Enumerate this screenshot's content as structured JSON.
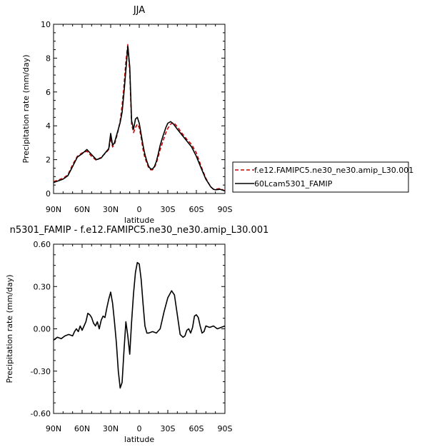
{
  "chart_data": [
    {
      "type": "line",
      "title": "JJA",
      "xlabel": "latitude",
      "ylabel": "Precipitation rate (mm/day)",
      "xlim": [
        90,
        -90
      ],
      "ylim": [
        0,
        10
      ],
      "xticks": [
        90,
        60,
        30,
        0,
        -30,
        -60,
        -90
      ],
      "xtick_labels": [
        "90N",
        "60N",
        "30N",
        "0",
        "30S",
        "60S",
        "90S"
      ],
      "yticks": [
        0,
        2,
        4,
        6,
        8,
        10
      ],
      "ytick_labels": [
        "0",
        "2",
        "4",
        "6",
        "8",
        "10"
      ],
      "legend_position": "right",
      "series": [
        {
          "name": "f.e12.FAMIPC5.ne30_ne30.amip_L30.001",
          "color": "#cc0000",
          "style": "dashed",
          "x": [
            90,
            85,
            80,
            75,
            70,
            65,
            60,
            55,
            50,
            45,
            40,
            35,
            32,
            30,
            28,
            26,
            24,
            22,
            20,
            18,
            16,
            14,
            12,
            10,
            8,
            6,
            4,
            2,
            0,
            -2,
            -4,
            -6,
            -8,
            -10,
            -12,
            -14,
            -16,
            -18,
            -20,
            -22,
            -25,
            -28,
            -30,
            -33,
            -36,
            -40,
            -45,
            -50,
            -55,
            -60,
            -65,
            -70,
            -75,
            -78,
            -80,
            -85,
            -90
          ],
          "values": [
            0.7,
            0.8,
            0.9,
            1.1,
            1.7,
            2.2,
            2.4,
            2.5,
            2.2,
            1.95,
            2.15,
            2.4,
            2.6,
            3.3,
            2.75,
            2.9,
            3.3,
            3.75,
            4.3,
            5.2,
            6.4,
            7.8,
            8.8,
            7.2,
            4.1,
            3.6,
            3.9,
            4.1,
            3.9,
            3.3,
            2.6,
            2.1,
            1.8,
            1.5,
            1.4,
            1.4,
            1.55,
            1.8,
            2.2,
            2.6,
            3.1,
            3.6,
            3.85,
            4.1,
            4.2,
            3.95,
            3.55,
            3.2,
            2.9,
            2.4,
            1.6,
            0.9,
            0.4,
            0.25,
            0.25,
            0.3,
            0.15
          ]
        },
        {
          "name": "60Lcam5301_FAMIP",
          "color": "#000000",
          "style": "solid",
          "x": [
            90,
            85,
            80,
            75,
            70,
            65,
            60,
            55,
            50,
            45,
            40,
            35,
            32,
            30,
            28,
            26,
            24,
            22,
            20,
            18,
            16,
            14,
            12,
            10,
            8,
            6,
            4,
            2,
            0,
            -2,
            -4,
            -6,
            -8,
            -10,
            -12,
            -14,
            -16,
            -18,
            -20,
            -22,
            -25,
            -28,
            -30,
            -33,
            -36,
            -40,
            -45,
            -50,
            -55,
            -60,
            -65,
            -70,
            -75,
            -78,
            -80,
            -85,
            -90
          ],
          "values": [
            0.65,
            0.75,
            0.85,
            1.05,
            1.6,
            2.15,
            2.35,
            2.6,
            2.3,
            2.0,
            2.1,
            2.45,
            2.65,
            3.55,
            2.85,
            3.0,
            3.4,
            3.8,
            4.2,
            4.8,
            6.0,
            7.3,
            8.7,
            7.5,
            4.3,
            3.8,
            4.4,
            4.5,
            4.15,
            3.5,
            2.85,
            2.3,
            1.9,
            1.6,
            1.45,
            1.45,
            1.6,
            1.9,
            2.35,
            2.85,
            3.4,
            3.9,
            4.15,
            4.25,
            4.1,
            3.8,
            3.45,
            3.1,
            2.75,
            2.2,
            1.5,
            0.85,
            0.4,
            0.25,
            0.22,
            0.25,
            0.15
          ]
        }
      ]
    },
    {
      "type": "line",
      "title": "n5301_FAMIP - f.e12.FAMIPC5.ne30_ne30.amip_L30.001",
      "xlabel": "latitude",
      "ylabel": "Precipitation rate (mm/day)",
      "xlim": [
        90,
        -90
      ],
      "ylim": [
        -0.6,
        0.6
      ],
      "xticks": [
        90,
        60,
        30,
        0,
        -30,
        -60,
        -90
      ],
      "xtick_labels": [
        "90N",
        "60N",
        "30N",
        "0",
        "30S",
        "60S",
        "90S"
      ],
      "yticks": [
        0.6,
        0.3,
        0.0,
        -0.3,
        -0.6
      ],
      "ytick_labels": [
        "0.60",
        "0.30",
        "0.00",
        "-0.30",
        "-0.60"
      ],
      "series": [
        {
          "color": "#000000",
          "style": "solid",
          "x": [
            90,
            86,
            82,
            78,
            74,
            70,
            68,
            66,
            64,
            62,
            60,
            58,
            56,
            54,
            52,
            50,
            48,
            46,
            44,
            42,
            40,
            38,
            36,
            34,
            32,
            30,
            28,
            26,
            24,
            22,
            20,
            18,
            16,
            14,
            12,
            10,
            8,
            6,
            4,
            2,
            0,
            -2,
            -4,
            -6,
            -8,
            -10,
            -14,
            -18,
            -22,
            -26,
            -30,
            -34,
            -37,
            -40,
            -43,
            -46,
            -48,
            -50,
            -52,
            -54,
            -56,
            -58,
            -60,
            -62,
            -64,
            -66,
            -68,
            -70,
            -74,
            -78,
            -82,
            -86,
            -90
          ],
          "values": [
            -0.08,
            -0.06,
            -0.07,
            -0.05,
            -0.04,
            -0.05,
            -0.02,
            0.0,
            -0.02,
            0.02,
            -0.01,
            0.02,
            0.05,
            0.11,
            0.1,
            0.08,
            0.04,
            0.02,
            0.05,
            0.0,
            0.06,
            0.09,
            0.08,
            0.15,
            0.21,
            0.26,
            0.18,
            0.05,
            -0.1,
            -0.3,
            -0.42,
            -0.38,
            -0.15,
            0.05,
            -0.05,
            -0.18,
            0.05,
            0.25,
            0.4,
            0.47,
            0.46,
            0.35,
            0.18,
            0.02,
            -0.03,
            -0.03,
            -0.02,
            -0.03,
            0.0,
            0.12,
            0.22,
            0.27,
            0.24,
            0.1,
            -0.04,
            -0.06,
            -0.05,
            -0.01,
            0.0,
            -0.03,
            0.01,
            0.09,
            0.1,
            0.08,
            0.02,
            -0.03,
            -0.02,
            0.02,
            0.01,
            0.02,
            0.0,
            0.01,
            0.02
          ]
        }
      ]
    }
  ]
}
